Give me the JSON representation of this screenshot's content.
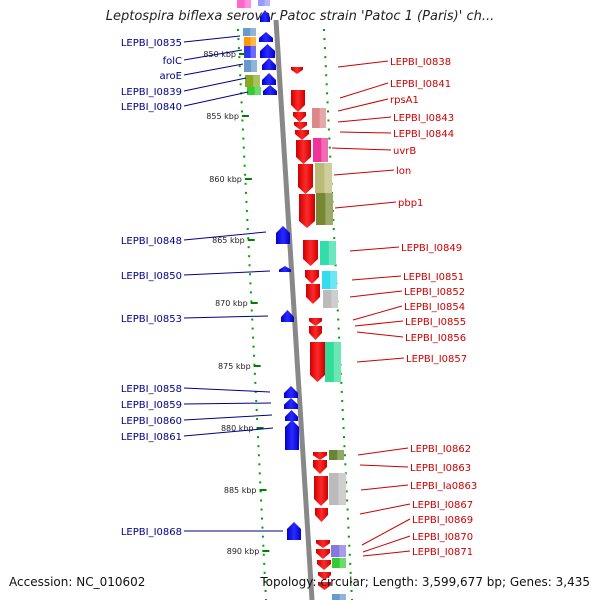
{
  "title": "Leptospira biflexa serovar Patoc strain 'Patoc 1 (Paris)' ch...",
  "footer": {
    "accession": "Accession: NC_010602",
    "topology": "Topology: circular; Length: 3,599,677 bp; Genes: 3,435"
  },
  "colors": {
    "forward": "#ff0000",
    "reverse": "#0000ff",
    "left_label": "#00008b",
    "right_label": "#cc0000",
    "tick": "#008000",
    "backbone": "#888888"
  },
  "scale": {
    "unit": "kbp",
    "ticks": [
      "850 kbp",
      "855 kbp",
      "860 kbp",
      "865 kbp",
      "870 kbp",
      "875 kbp",
      "880 kbp",
      "885 kbp",
      "890 kbp"
    ]
  },
  "left_labels": [
    "LEPBI_I0835",
    "folC",
    "aroE",
    "LEPBI_I0839",
    "LEPBI_I0840",
    "LEPBI_I0848",
    "LEPBI_I0850",
    "LEPBI_I0853",
    "LEPBI_I0858",
    "LEPBI_I0859",
    "LEPBI_I0860",
    "LEPBI_I0861",
    "LEPBI_I0868"
  ],
  "right_labels": [
    "LEPBI_I0838",
    "LEPBI_I0841",
    "rpsA1",
    "LEPBI_I0843",
    "LEPBI_I0844",
    "uvrB",
    "lon",
    "pbp1",
    "LEPBI_I0849",
    "LEPBI_I0851",
    "LEPBI_I0852",
    "LEPBI_I0854",
    "LEPBI_I0855",
    "LEPBI_I0856",
    "LEPBI_I0857",
    "LEPBI_I0862",
    "LEPBI_I0863",
    "LEPBI_Ia0863",
    "LEPBI_I0867",
    "LEPBI_I0869",
    "LEPBI_I0870",
    "LEPBI_I0871"
  ]
}
